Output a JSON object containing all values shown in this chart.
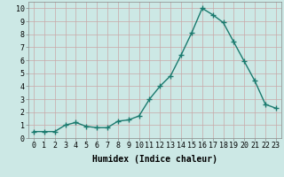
{
  "x": [
    0,
    1,
    2,
    3,
    4,
    5,
    6,
    7,
    8,
    9,
    10,
    11,
    12,
    13,
    14,
    15,
    16,
    17,
    18,
    19,
    20,
    21,
    22,
    23
  ],
  "y": [
    0.5,
    0.5,
    0.5,
    1.0,
    1.2,
    0.9,
    0.8,
    0.8,
    1.3,
    1.4,
    1.7,
    3.0,
    4.0,
    4.8,
    6.4,
    8.1,
    10.0,
    9.5,
    8.9,
    7.4,
    5.9,
    4.4,
    2.6,
    2.3
  ],
  "line_color": "#1a7a6e",
  "marker": "+",
  "marker_size": 4,
  "bg_color": "#cce8e5",
  "grid_color": "#c8a8a8",
  "xlabel": "Humidex (Indice chaleur)",
  "xlim": [
    -0.5,
    23.5
  ],
  "ylim": [
    0,
    10.5
  ],
  "xticks": [
    0,
    1,
    2,
    3,
    4,
    5,
    6,
    7,
    8,
    9,
    10,
    11,
    12,
    13,
    14,
    15,
    16,
    17,
    18,
    19,
    20,
    21,
    22,
    23
  ],
  "yticks": [
    0,
    1,
    2,
    3,
    4,
    5,
    6,
    7,
    8,
    9,
    10
  ],
  "tick_fontsize": 6,
  "xlabel_fontsize": 7,
  "line_width": 1.0
}
